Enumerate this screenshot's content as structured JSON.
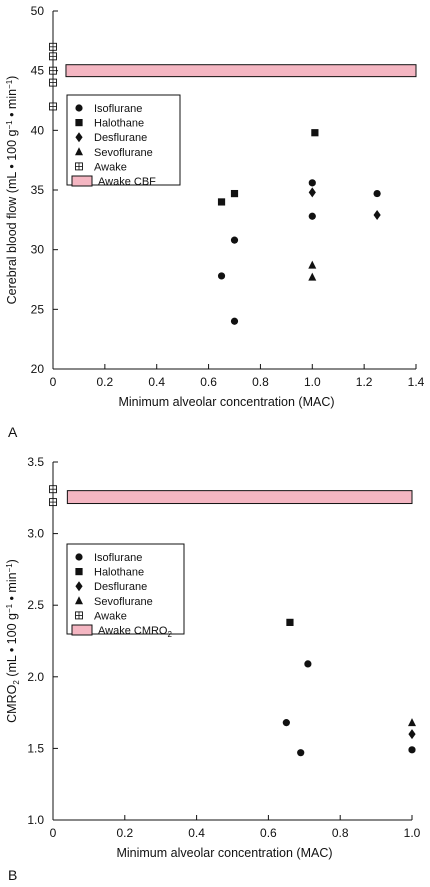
{
  "chart_data": [
    {
      "panel_label": "A",
      "type": "scatter",
      "xlabel": "Minimum alveolar concentration (MAC)",
      "ylabel_parts": [
        "Cerebral blood flow (mL • 100 g",
        "−1",
        " • min",
        "−1",
        ")"
      ],
      "xlim": [
        0,
        1.4
      ],
      "ylim": [
        20,
        50
      ],
      "xticks": [
        "0",
        "0.2",
        "0.4",
        "0.6",
        "0.8",
        "1.0",
        "1.2",
        "1.4"
      ],
      "yticks": [
        "20",
        "25",
        "30",
        "35",
        "40",
        "45",
        "50"
      ],
      "band": {
        "label": "Awake CBF",
        "y_low": 44.5,
        "y_high": 45.5,
        "x_start": 0.05,
        "x_end": 1.4,
        "color": "#f4b6c2"
      },
      "legend": [
        "Isoflurane",
        "Halothane",
        "Desflurane",
        "Sevoflurane",
        "Awake",
        "Awake CBF"
      ],
      "series": [
        {
          "name": "Isoflurane",
          "marker": "circle",
          "points": [
            [
              0.65,
              27.8
            ],
            [
              0.7,
              30.8
            ],
            [
              0.7,
              24.0
            ],
            [
              1.0,
              35.6
            ],
            [
              1.0,
              32.8
            ],
            [
              1.25,
              34.7
            ]
          ]
        },
        {
          "name": "Halothane",
          "marker": "square",
          "points": [
            [
              0.65,
              34.0
            ],
            [
              0.7,
              34.7
            ],
            [
              1.01,
              39.8
            ]
          ]
        },
        {
          "name": "Desflurane",
          "marker": "diamond",
          "points": [
            [
              1.0,
              34.8
            ],
            [
              1.25,
              32.9
            ]
          ]
        },
        {
          "name": "Sevoflurane",
          "marker": "triangle",
          "points": [
            [
              1.0,
              28.7
            ],
            [
              1.0,
              27.7
            ]
          ]
        },
        {
          "name": "Awake",
          "marker": "boxplus",
          "points": [
            [
              0.0,
              47.0
            ],
            [
              0.0,
              46.2
            ],
            [
              0.0,
              45.0
            ],
            [
              0.0,
              44.0
            ],
            [
              0.0,
              42.0
            ]
          ]
        }
      ]
    },
    {
      "panel_label": "B",
      "type": "scatter",
      "xlabel": "Minimum alveolar concentration (MAC)",
      "ylabel_parts": [
        "CMRO",
        "2",
        " (mL • 100 g",
        "−1",
        " • min",
        "−1",
        ")"
      ],
      "xlim": [
        0,
        1.0
      ],
      "ylim": [
        1.0,
        3.5
      ],
      "xticks": [
        "0",
        "0.2",
        "0.4",
        "0.6",
        "0.8",
        "1.0"
      ],
      "yticks": [
        "1.0",
        "1.5",
        "2.0",
        "2.5",
        "3.0",
        "3.5"
      ],
      "band": {
        "label": "Awake CMRO2",
        "y_low": 3.21,
        "y_high": 3.3,
        "x_start": 0.04,
        "x_end": 1.0,
        "color": "#f4b6c2"
      },
      "legend": [
        "Isoflurane",
        "Halothane",
        "Desflurane",
        "Sevoflurane",
        "Awake",
        "Awake CMRO2"
      ],
      "series": [
        {
          "name": "Isoflurane",
          "marker": "circle",
          "points": [
            [
              0.65,
              1.68
            ],
            [
              0.69,
              1.47
            ],
            [
              0.71,
              2.09
            ],
            [
              1.0,
              1.49
            ]
          ]
        },
        {
          "name": "Halothane",
          "marker": "square",
          "points": [
            [
              0.66,
              2.38
            ]
          ]
        },
        {
          "name": "Desflurane",
          "marker": "diamond",
          "points": [
            [
              1.0,
              1.6
            ]
          ]
        },
        {
          "name": "Sevoflurane",
          "marker": "triangle",
          "points": [
            [
              1.0,
              1.68
            ]
          ]
        },
        {
          "name": "Awake",
          "marker": "boxplus",
          "points": [
            [
              0.0,
              3.31
            ],
            [
              0.0,
              3.22
            ]
          ]
        }
      ]
    }
  ]
}
